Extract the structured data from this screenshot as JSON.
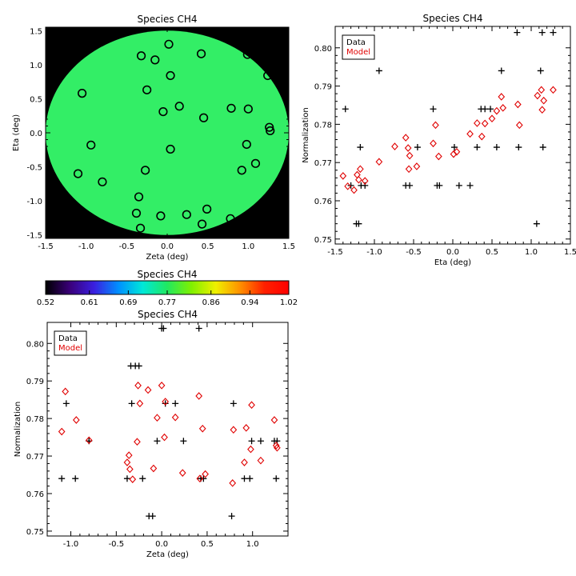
{
  "chart_data": [
    {
      "type": "scatter",
      "panel": "map",
      "title": "Species CH4",
      "xlabel": "Zeta (deg)",
      "ylabel": "Eta (deg)",
      "xlim": [
        -1.5,
        1.5
      ],
      "ylim": [
        -1.55,
        1.55
      ],
      "xticks": [
        "-1.5",
        "-1.0",
        "-0.5",
        "0.0",
        "0.5",
        "1.0",
        "1.5"
      ],
      "yticks": [
        "-1.5",
        "-1.0",
        "-0.5",
        "0.0",
        "0.5",
        "1.0",
        "1.5"
      ],
      "background_color": "#000000",
      "field_color": "#33ee66",
      "field_shape": "circle",
      "field_radius_deg": 1.5,
      "marker": "open-circle",
      "points": [
        {
          "x": 0.02,
          "y": 1.3
        },
        {
          "x": -0.32,
          "y": 1.13
        },
        {
          "x": -0.15,
          "y": 1.07
        },
        {
          "x": 0.42,
          "y": 1.16
        },
        {
          "x": 0.99,
          "y": 1.15
        },
        {
          "x": 1.24,
          "y": 0.84
        },
        {
          "x": 0.04,
          "y": 0.84
        },
        {
          "x": -1.05,
          "y": 0.58
        },
        {
          "x": -0.25,
          "y": 0.63
        },
        {
          "x": 0.15,
          "y": 0.39
        },
        {
          "x": -0.05,
          "y": 0.31
        },
        {
          "x": 0.79,
          "y": 0.36
        },
        {
          "x": 0.45,
          "y": 0.22
        },
        {
          "x": 1.0,
          "y": 0.35
        },
        {
          "x": 1.26,
          "y": 0.08
        },
        {
          "x": 1.27,
          "y": 0.03
        },
        {
          "x": -0.94,
          "y": -0.18
        },
        {
          "x": 0.04,
          "y": -0.24
        },
        {
          "x": 0.98,
          "y": -0.17
        },
        {
          "x": 1.09,
          "y": -0.45
        },
        {
          "x": 0.92,
          "y": -0.55
        },
        {
          "x": -1.1,
          "y": -0.6
        },
        {
          "x": -0.8,
          "y": -0.72
        },
        {
          "x": -0.27,
          "y": -0.55
        },
        {
          "x": -0.35,
          "y": -0.94
        },
        {
          "x": -0.38,
          "y": -1.18
        },
        {
          "x": -0.08,
          "y": -1.22
        },
        {
          "x": 0.24,
          "y": -1.2
        },
        {
          "x": 0.49,
          "y": -1.12
        },
        {
          "x": 0.43,
          "y": -1.34
        },
        {
          "x": 0.78,
          "y": -1.26
        },
        {
          "x": -0.33,
          "y": -1.4
        }
      ]
    },
    {
      "type": "colorbar",
      "title": "Species CH4",
      "min": 0.52,
      "max": 1.02,
      "ticks": [
        "0.52",
        "0.61",
        "0.69",
        "0.77",
        "0.86",
        "0.94",
        "1.02"
      ],
      "colormap": [
        "#000000",
        "#3a007a",
        "#3a1fe0",
        "#0090ff",
        "#00e8d8",
        "#20e860",
        "#80f000",
        "#f0f000",
        "#ff9000",
        "#ff2000",
        "#ff0000"
      ]
    },
    {
      "type": "scatter",
      "panel": "eta",
      "title": "Species CH4",
      "xlabel": "Eta (deg)",
      "ylabel": "Normalization",
      "xlim": [
        -1.5,
        1.5
      ],
      "ylim": [
        0.7487,
        0.8056
      ],
      "xticks": [
        "-1.5",
        "-1.0",
        "-0.5",
        "0.0",
        "0.5",
        "1.0",
        "1.5"
      ],
      "yticks": [
        "0.75",
        "0.76",
        "0.77",
        "0.78",
        "0.79",
        "0.80"
      ],
      "legend": {
        "position": "top-left",
        "entries": [
          {
            "label": "Data",
            "color": "#000000"
          },
          {
            "label": "Model",
            "color": "#e00000"
          }
        ]
      },
      "series": [
        {
          "name": "Data",
          "marker": "plus",
          "color": "#000000",
          "points": [
            [
              -1.37,
              0.784
            ],
            [
              -1.3,
              0.764
            ],
            [
              -1.23,
              0.754
            ],
            [
              -1.2,
              0.754
            ],
            [
              -1.18,
              0.774
            ],
            [
              -1.17,
              0.764
            ],
            [
              -1.12,
              0.764
            ],
            [
              -0.94,
              0.794
            ],
            [
              -0.6,
              0.764
            ],
            [
              -0.55,
              0.764
            ],
            [
              -0.45,
              0.774
            ],
            [
              -0.25,
              0.784
            ],
            [
              -0.2,
              0.764
            ],
            [
              -0.17,
              0.764
            ],
            [
              0.02,
              0.774
            ],
            [
              0.08,
              0.764
            ],
            [
              0.22,
              0.764
            ],
            [
              0.31,
              0.774
            ],
            [
              0.36,
              0.784
            ],
            [
              0.41,
              0.784
            ],
            [
              0.48,
              0.784
            ],
            [
              0.56,
              0.774
            ],
            [
              0.62,
              0.794
            ],
            [
              0.82,
              0.804
            ],
            [
              0.84,
              0.774
            ],
            [
              1.07,
              0.754
            ],
            [
              1.12,
              0.794
            ],
            [
              1.14,
              0.804
            ],
            [
              1.15,
              0.774
            ],
            [
              1.28,
              0.804
            ]
          ]
        },
        {
          "name": "Model",
          "marker": "diamond",
          "color": "#e00000",
          "points": [
            [
              -1.4,
              0.7665
            ],
            [
              -1.34,
              0.7638
            ],
            [
              -1.26,
              0.7628
            ],
            [
              -1.22,
              0.7668
            ],
            [
              -1.2,
              0.7655
            ],
            [
              -1.18,
              0.7683
            ],
            [
              -1.12,
              0.7652
            ],
            [
              -0.94,
              0.7702
            ],
            [
              -0.74,
              0.7742
            ],
            [
              -0.6,
              0.7765
            ],
            [
              -0.57,
              0.7738
            ],
            [
              -0.56,
              0.7683
            ],
            [
              -0.55,
              0.7718
            ],
            [
              -0.46,
              0.769
            ],
            [
              -0.25,
              0.775
            ],
            [
              -0.22,
              0.7798
            ],
            [
              -0.18,
              0.7716
            ],
            [
              0.01,
              0.7722
            ],
            [
              0.05,
              0.7728
            ],
            [
              0.22,
              0.7775
            ],
            [
              0.31,
              0.7803
            ],
            [
              0.37,
              0.7768
            ],
            [
              0.41,
              0.7802
            ],
            [
              0.5,
              0.7815
            ],
            [
              0.56,
              0.7835
            ],
            [
              0.62,
              0.7872
            ],
            [
              0.64,
              0.7843
            ],
            [
              0.83,
              0.7852
            ],
            [
              0.85,
              0.7798
            ],
            [
              1.08,
              0.7875
            ],
            [
              1.13,
              0.789
            ],
            [
              1.14,
              0.7838
            ],
            [
              1.16,
              0.7862
            ],
            [
              1.28,
              0.789
            ]
          ]
        }
      ]
    },
    {
      "type": "scatter",
      "panel": "zeta",
      "title": "Species CH4",
      "xlabel": "Zeta (deg)",
      "ylabel": "Normalization",
      "xlim": [
        -1.26,
        1.39
      ],
      "ylim": [
        0.7487,
        0.8056
      ],
      "xticks": [
        "-1.0",
        "-0.5",
        "0.0",
        "0.5",
        "1.0"
      ],
      "yticks": [
        "0.75",
        "0.76",
        "0.77",
        "0.78",
        "0.79",
        "0.80"
      ],
      "legend": {
        "position": "top-left",
        "entries": [
          {
            "label": "Data",
            "color": "#000000"
          },
          {
            "label": "Model",
            "color": "#e00000"
          }
        ]
      },
      "series": [
        {
          "name": "Data",
          "marker": "plus",
          "color": "#000000",
          "points": [
            [
              -1.1,
              0.764
            ],
            [
              -1.05,
              0.784
            ],
            [
              -0.95,
              0.764
            ],
            [
              -0.8,
              0.774
            ],
            [
              -0.38,
              0.764
            ],
            [
              -0.34,
              0.794
            ],
            [
              -0.33,
              0.784
            ],
            [
              -0.29,
              0.794
            ],
            [
              -0.25,
              0.794
            ],
            [
              -0.21,
              0.764
            ],
            [
              -0.14,
              0.754
            ],
            [
              -0.1,
              0.754
            ],
            [
              -0.05,
              0.774
            ],
            [
              0.0,
              0.804
            ],
            [
              0.02,
              0.804
            ],
            [
              0.04,
              0.784
            ],
            [
              0.15,
              0.784
            ],
            [
              0.24,
              0.774
            ],
            [
              0.41,
              0.804
            ],
            [
              0.43,
              0.764
            ],
            [
              0.46,
              0.764
            ],
            [
              0.79,
              0.784
            ],
            [
              0.77,
              0.754
            ],
            [
              0.91,
              0.764
            ],
            [
              0.97,
              0.764
            ],
            [
              0.99,
              0.774
            ],
            [
              1.09,
              0.774
            ],
            [
              1.24,
              0.774
            ],
            [
              1.26,
              0.764
            ],
            [
              1.27,
              0.774
            ]
          ]
        },
        {
          "name": "Model",
          "marker": "diamond",
          "color": "#e00000",
          "points": [
            [
              -1.1,
              0.7765
            ],
            [
              -1.06,
              0.7872
            ],
            [
              -0.94,
              0.7796
            ],
            [
              -0.8,
              0.7742
            ],
            [
              -0.38,
              0.7683
            ],
            [
              -0.36,
              0.7702
            ],
            [
              -0.35,
              0.7665
            ],
            [
              -0.32,
              0.7638
            ],
            [
              -0.27,
              0.7738
            ],
            [
              -0.26,
              0.7888
            ],
            [
              -0.24,
              0.784
            ],
            [
              -0.15,
              0.7876
            ],
            [
              -0.09,
              0.7667
            ],
            [
              -0.05,
              0.7802
            ],
            [
              0.0,
              0.7888
            ],
            [
              0.03,
              0.775
            ],
            [
              0.04,
              0.7845
            ],
            [
              0.15,
              0.7803
            ],
            [
              0.23,
              0.7655
            ],
            [
              0.41,
              0.786
            ],
            [
              0.42,
              0.764
            ],
            [
              0.45,
              0.7773
            ],
            [
              0.48,
              0.7652
            ],
            [
              0.78,
              0.7628
            ],
            [
              0.79,
              0.777
            ],
            [
              0.91,
              0.7683
            ],
            [
              0.93,
              0.7775
            ],
            [
              0.98,
              0.7718
            ],
            [
              0.99,
              0.7836
            ],
            [
              1.09,
              0.7688
            ],
            [
              1.24,
              0.7796
            ],
            [
              1.26,
              0.7728
            ],
            [
              1.27,
              0.7722
            ]
          ]
        }
      ]
    }
  ]
}
